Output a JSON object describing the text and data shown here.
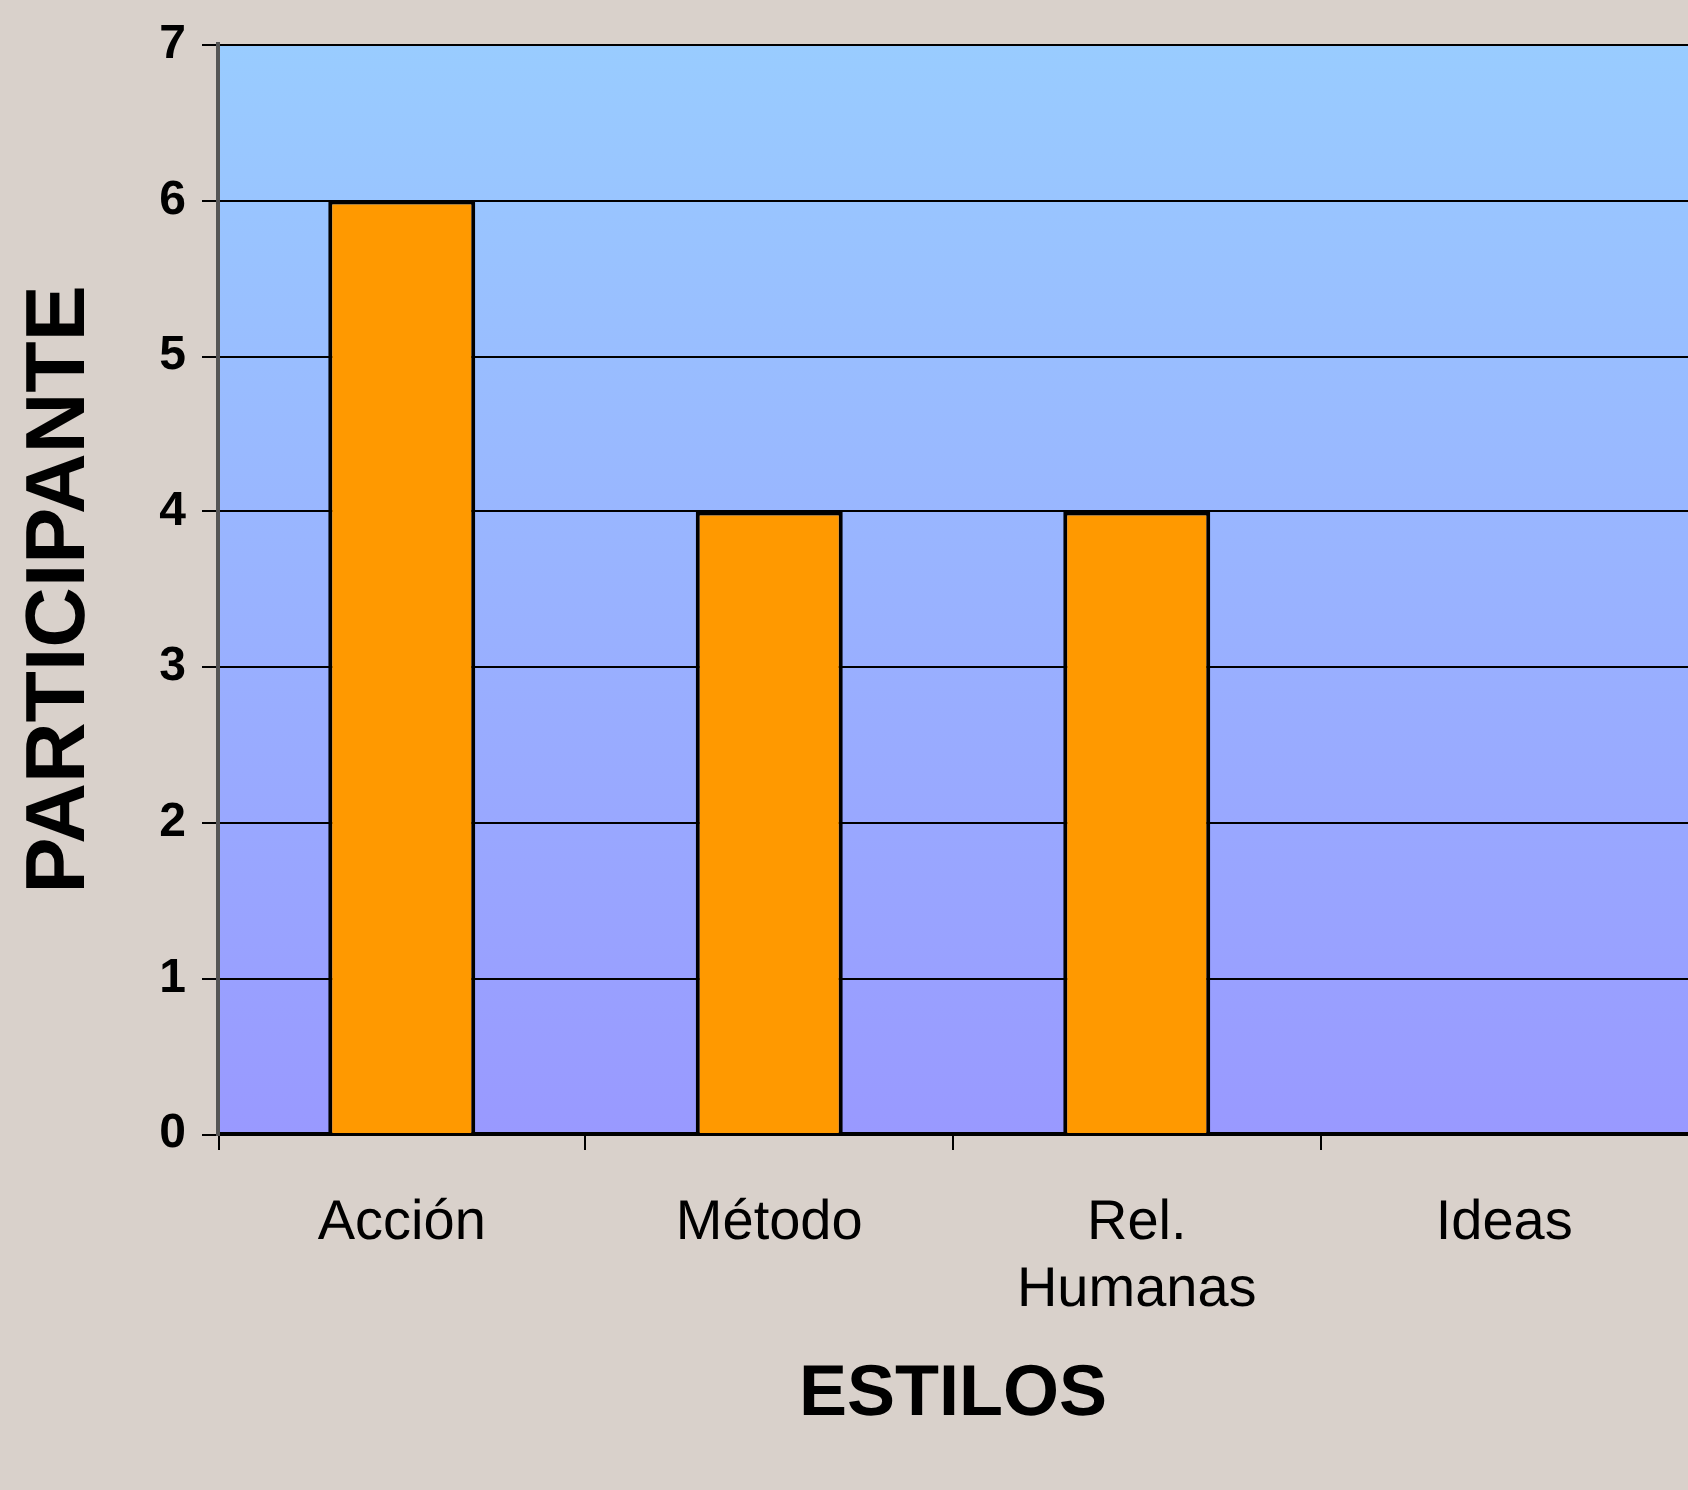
{
  "chart_data": {
    "type": "bar",
    "xlabel": "ESTILOS",
    "ylabel": "PARTICIPANTE",
    "categories": [
      "Acción",
      "Método",
      "Rel. Humanas",
      "Ideas"
    ],
    "values": [
      6,
      4,
      4,
      0
    ],
    "color": "#ff9900",
    "ylim": [
      0,
      7
    ],
    "yticks": [
      0,
      1,
      2,
      3,
      4,
      5,
      6,
      7
    ],
    "grid": "y"
  }
}
